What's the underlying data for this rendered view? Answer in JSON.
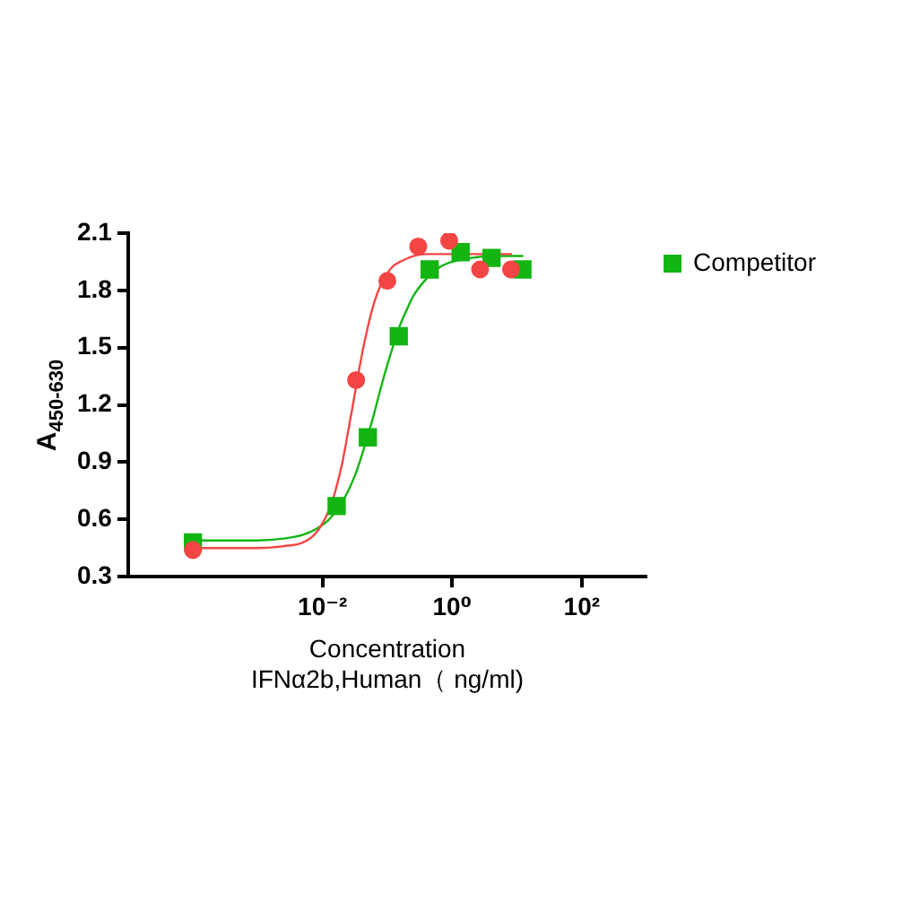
{
  "chart_data": {
    "type": "scatter",
    "xlabel": "Concentration\nIFNα2b,Human（ ng/ml)",
    "ylabel": "A$_{450-630}$",
    "log": "x",
    "xlim": [
      1e-05,
      1000
    ],
    "xticks": [
      {
        "value": 0.01,
        "label": "10⁻²"
      },
      {
        "value": 1,
        "label": "10⁰"
      },
      {
        "value": 100,
        "label": "10²"
      }
    ],
    "ylim": [
      0.3,
      2.1
    ],
    "yticks": [
      0.3,
      0.6,
      0.9,
      1.2,
      1.5,
      1.8,
      2.1
    ],
    "grid": false,
    "legend": "top right",
    "series": [
      {
        "type": "line",
        "color": "#f44545",
        "marker": "none",
        "line_style": "solid",
        "x": [
          0.0001,
          0.000316,
          0.001,
          0.00251,
          0.00501,
          0.00794,
          0.0126,
          0.0158,
          0.02,
          0.0251,
          0.0316,
          0.0398,
          0.0501,
          0.0631,
          0.0794,
          0.1,
          0.126,
          0.158,
          0.251,
          0.398,
          0.631,
          1,
          2,
          4,
          8.1
        ],
        "values": [
          0.45,
          0.45,
          0.45,
          0.46,
          0.48,
          0.53,
          0.65,
          0.75,
          0.89,
          1.07,
          1.26,
          1.45,
          1.61,
          1.74,
          1.83,
          1.89,
          1.93,
          1.95,
          1.98,
          1.99,
          1.99,
          1.99,
          1.99,
          1.99,
          1.99
        ]
      },
      {
        "type": "line",
        "color": "#12b512",
        "marker": "none",
        "line_style": "solid",
        "x": [
          0.0001,
          0.000316,
          0.001,
          0.00251,
          0.00501,
          0.00794,
          0.0126,
          0.02,
          0.0316,
          0.0398,
          0.0501,
          0.0631,
          0.0794,
          0.1,
          0.126,
          0.158,
          0.2,
          0.251,
          0.398,
          0.631,
          1,
          2,
          4,
          12.15
        ],
        "values": [
          0.49,
          0.49,
          0.49,
          0.5,
          0.52,
          0.55,
          0.6,
          0.69,
          0.83,
          0.93,
          1.04,
          1.16,
          1.29,
          1.41,
          1.52,
          1.62,
          1.7,
          1.77,
          1.86,
          1.92,
          1.95,
          1.97,
          1.98,
          1.98
        ]
      },
      {
        "type": "scatter",
        "color": "#f44545",
        "marker": "circle",
        "x": [
          0.0001,
          0.033,
          0.1,
          0.3,
          0.9,
          2.7,
          8.1
        ],
        "values": [
          0.44,
          1.33,
          1.85,
          2.03,
          2.06,
          1.91,
          1.91
        ]
      },
      {
        "type": "scatter",
        "name": "Competitor",
        "color": "#12b512",
        "marker": "square",
        "x": [
          0.0001,
          0.0165,
          0.05,
          0.15,
          0.45,
          1.35,
          4.05,
          12.15
        ],
        "values": [
          0.48,
          0.67,
          1.03,
          1.56,
          1.91,
          2.0,
          1.97,
          1.91
        ]
      }
    ]
  }
}
